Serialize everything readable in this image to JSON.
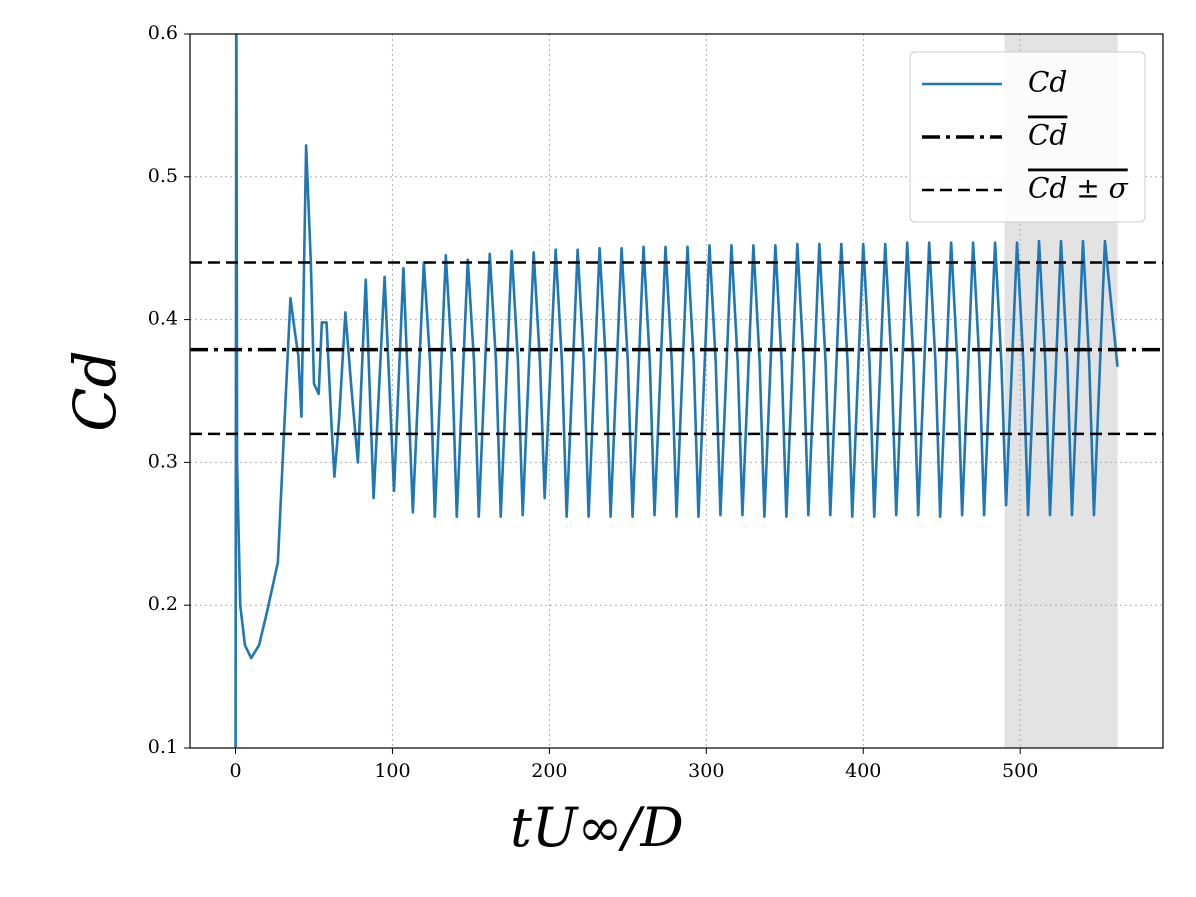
{
  "chart_data": {
    "type": "line",
    "xlabel": "tU∞/D",
    "ylabel": "Cd",
    "xlim": [
      -29,
      591
    ],
    "ylim": [
      0.1,
      0.6
    ],
    "xticks": [
      0,
      100,
      200,
      300,
      400,
      500
    ],
    "yticks": [
      0.1,
      0.2,
      0.3,
      0.4,
      0.5,
      0.6
    ],
    "grid": true,
    "legend": "upper right",
    "shaded_span": [
      490,
      562
    ],
    "series": [
      {
        "name": "Cd",
        "color": "#1f77b4",
        "x": [
          0,
          0.5,
          1,
          3,
          6,
          10,
          15,
          20,
          27,
          30,
          35,
          38,
          40,
          42,
          45,
          48,
          50,
          53,
          55,
          58,
          61,
          63,
          66,
          70,
          74,
          78,
          83,
          88,
          95,
          101,
          107,
          113,
          120,
          124,
          127,
          134,
          138,
          141,
          148,
          152,
          155,
          162,
          166,
          169,
          176,
          180,
          183,
          190,
          194,
          197,
          204,
          208,
          211,
          218,
          222,
          225,
          232,
          236,
          239,
          246,
          250,
          253,
          260,
          264,
          267,
          274,
          278,
          281,
          288,
          292,
          295,
          302,
          306,
          309,
          316,
          320,
          323,
          330,
          334,
          337,
          344,
          348,
          351,
          358,
          362,
          365,
          372,
          376,
          379,
          386,
          390,
          393,
          400,
          404,
          407,
          414,
          418,
          421,
          428,
          432,
          435,
          442,
          446,
          449,
          456,
          460,
          463,
          470,
          474,
          477,
          484,
          488,
          491,
          498,
          502,
          505,
          512,
          516,
          519,
          526,
          530,
          533,
          540,
          544,
          547,
          554,
          562
        ],
        "values": [
          0.05,
          0.65,
          0.3,
          0.2,
          0.172,
          0.163,
          0.172,
          0.195,
          0.23,
          0.3,
          0.415,
          0.39,
          0.375,
          0.332,
          0.522,
          0.44,
          0.355,
          0.348,
          0.398,
          0.398,
          0.33,
          0.29,
          0.33,
          0.405,
          0.35,
          0.3,
          0.428,
          0.275,
          0.43,
          0.28,
          0.436,
          0.265,
          0.44,
          0.37,
          0.262,
          0.445,
          0.37,
          0.262,
          0.442,
          0.37,
          0.262,
          0.446,
          0.37,
          0.262,
          0.448,
          0.37,
          0.263,
          0.447,
          0.37,
          0.275,
          0.449,
          0.37,
          0.262,
          0.449,
          0.37,
          0.262,
          0.45,
          0.37,
          0.262,
          0.45,
          0.37,
          0.262,
          0.451,
          0.37,
          0.263,
          0.451,
          0.37,
          0.262,
          0.451,
          0.37,
          0.262,
          0.452,
          0.37,
          0.263,
          0.452,
          0.37,
          0.263,
          0.452,
          0.37,
          0.262,
          0.452,
          0.37,
          0.262,
          0.453,
          0.37,
          0.263,
          0.453,
          0.37,
          0.263,
          0.453,
          0.37,
          0.262,
          0.453,
          0.37,
          0.262,
          0.453,
          0.37,
          0.263,
          0.454,
          0.37,
          0.263,
          0.454,
          0.37,
          0.262,
          0.454,
          0.37,
          0.263,
          0.454,
          0.37,
          0.263,
          0.454,
          0.37,
          0.27,
          0.454,
          0.37,
          0.263,
          0.455,
          0.37,
          0.263,
          0.455,
          0.37,
          0.263,
          0.455,
          0.37,
          0.263,
          0.455,
          0.367
        ]
      }
    ],
    "reference_lines": [
      {
        "name": "Cd",
        "color": "#000000",
        "style": "dashdot",
        "values": [
          0.379
        ]
      },
      {
        "name": "Cd ± σ",
        "color": "#000000",
        "style": "dashed",
        "values": [
          0.44,
          0.32
        ]
      }
    ]
  }
}
